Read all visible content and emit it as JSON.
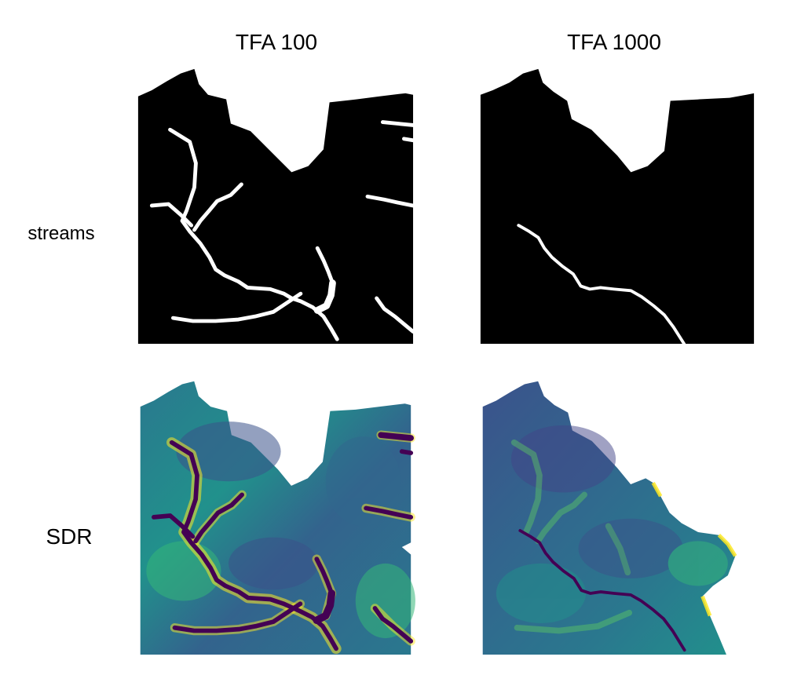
{
  "columns": [
    {
      "title": "TFA 100"
    },
    {
      "title": "TFA 1000"
    }
  ],
  "rows": [
    {
      "label": "streams"
    },
    {
      "label": "SDR"
    }
  ],
  "colors": {
    "background": "#ffffff",
    "mask_fill": "#000000",
    "stream_line": "#ffffff",
    "sdr_low": "#3b528b",
    "sdr_mid": "#21918c",
    "sdr_high": "#5ec962",
    "sdr_peak": "#fde725",
    "sdr_stream": "#440154"
  }
}
